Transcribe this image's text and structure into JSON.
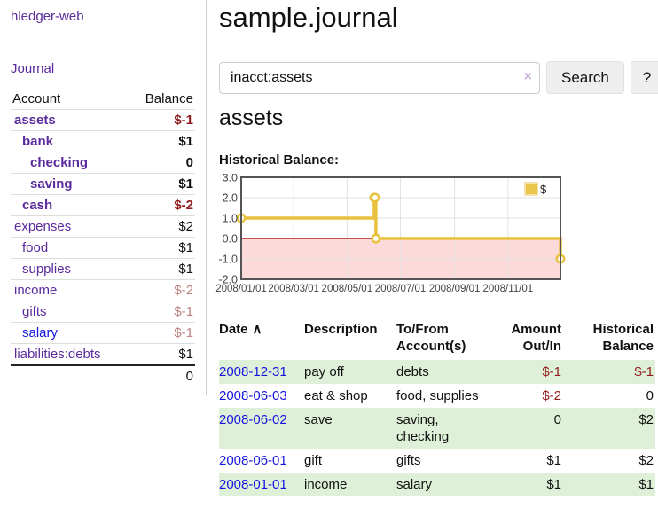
{
  "colors": {
    "link_purple": "#5b2a9d",
    "link_blue": "#1414e0",
    "negative_strong": "#8f1d1d",
    "negative_soft": "#c08383",
    "row_green": "#dff0d8",
    "chart_line_gold": "#e8c23f",
    "chart_negative_region_pink": "#fcdada",
    "chart_zero_line_red": "#a40000"
  },
  "sidebar": {
    "brand": "hledger-web",
    "nav": [
      {
        "label": "Journal"
      }
    ],
    "columns": {
      "account": "Account",
      "balance": "Balance"
    },
    "accounts": [
      {
        "name": "assets",
        "balance": "$-1",
        "level": 1,
        "bold": true,
        "link_style": "purple",
        "balance_style": "neg-strong"
      },
      {
        "name": "bank",
        "balance": "$1",
        "level": 2,
        "bold": true,
        "link_style": "purple",
        "balance_style": "plain"
      },
      {
        "name": "checking",
        "balance": "0",
        "level": 3,
        "bold": true,
        "link_style": "purple",
        "balance_style": "plain"
      },
      {
        "name": "saving",
        "balance": "$1",
        "level": 3,
        "bold": true,
        "link_style": "purple",
        "balance_style": "plain"
      },
      {
        "name": "cash",
        "balance": "$-2",
        "level": 2,
        "bold": true,
        "link_style": "purple",
        "balance_style": "neg-strong"
      },
      {
        "name": "expenses",
        "balance": "$2",
        "level": 1,
        "bold": false,
        "link_style": "purple",
        "balance_style": "plain"
      },
      {
        "name": "food",
        "balance": "$1",
        "level": 2,
        "bold": false,
        "link_style": "purple",
        "balance_style": "plain"
      },
      {
        "name": "supplies",
        "balance": "$1",
        "level": 2,
        "bold": false,
        "link_style": "purple",
        "balance_style": "plain"
      },
      {
        "name": "income",
        "balance": "$-2",
        "level": 1,
        "bold": false,
        "link_style": "purple",
        "balance_style": "neg-soft"
      },
      {
        "name": "gifts",
        "balance": "$-1",
        "level": 2,
        "bold": false,
        "link_style": "purple",
        "balance_style": "neg-soft"
      },
      {
        "name": "salary",
        "balance": "$-1",
        "level": 2,
        "bold": false,
        "link_style": "blue",
        "balance_style": "neg-soft"
      },
      {
        "name": "liabilities:debts",
        "balance": "$1",
        "level": 1,
        "bold": false,
        "link_style": "purple",
        "balance_style": "plain"
      }
    ],
    "total": "0"
  },
  "main": {
    "title": "sample.journal",
    "search": {
      "value": "inacct:assets",
      "clear": "×",
      "submit": "Search",
      "help": "?"
    },
    "account_heading": "assets",
    "chart_title": "Historical Balance:"
  },
  "chart_data": {
    "type": "line",
    "style": "step-after",
    "title": "Historical Balance of assets",
    "legend": "$",
    "legend_position": "top-right",
    "grid": true,
    "ylim": [
      -2.0,
      3.0
    ],
    "y_ticks": [
      3.0,
      2.0,
      1.0,
      0.0,
      -1.0,
      -2.0
    ],
    "x_range": [
      "2008-01-01",
      "2008-12-31"
    ],
    "x_ticks": [
      "2008/01/01",
      "2008/03/01",
      "2008/05/01",
      "2008/07/01",
      "2008/09/01",
      "2008/11/01"
    ],
    "negative_region_shaded": true,
    "series": [
      {
        "name": "$",
        "points": [
          {
            "date": "2008-01-01",
            "value": 1
          },
          {
            "date": "2008-06-01",
            "value": 2
          },
          {
            "date": "2008-06-02",
            "value": 2
          },
          {
            "date": "2008-06-03",
            "value": 0
          },
          {
            "date": "2008-12-31",
            "value": -1
          }
        ]
      }
    ]
  },
  "register": {
    "columns": [
      "Date",
      "Description",
      "To/From Account(s)",
      "Amount Out/In",
      "Historical Balance"
    ],
    "sort_icon": "∧",
    "rows": [
      {
        "date": "2008-12-31",
        "description": "pay off",
        "accounts": "debts",
        "amount": "$-1",
        "amount_neg": true,
        "balance": "$-1",
        "balance_neg": true
      },
      {
        "date": "2008-06-03",
        "description": "eat & shop",
        "accounts": "food, supplies",
        "amount": "$-2",
        "amount_neg": true,
        "balance": "0",
        "balance_neg": false
      },
      {
        "date": "2008-06-02",
        "description": "save",
        "accounts": "saving, checking",
        "amount": "0",
        "amount_neg": false,
        "balance": "$2",
        "balance_neg": false
      },
      {
        "date": "2008-06-01",
        "description": "gift",
        "accounts": "gifts",
        "amount": "$1",
        "amount_neg": false,
        "balance": "$2",
        "balance_neg": false
      },
      {
        "date": "2008-01-01",
        "description": "income",
        "accounts": "salary",
        "amount": "$1",
        "amount_neg": false,
        "balance": "$1",
        "balance_neg": false
      }
    ]
  }
}
